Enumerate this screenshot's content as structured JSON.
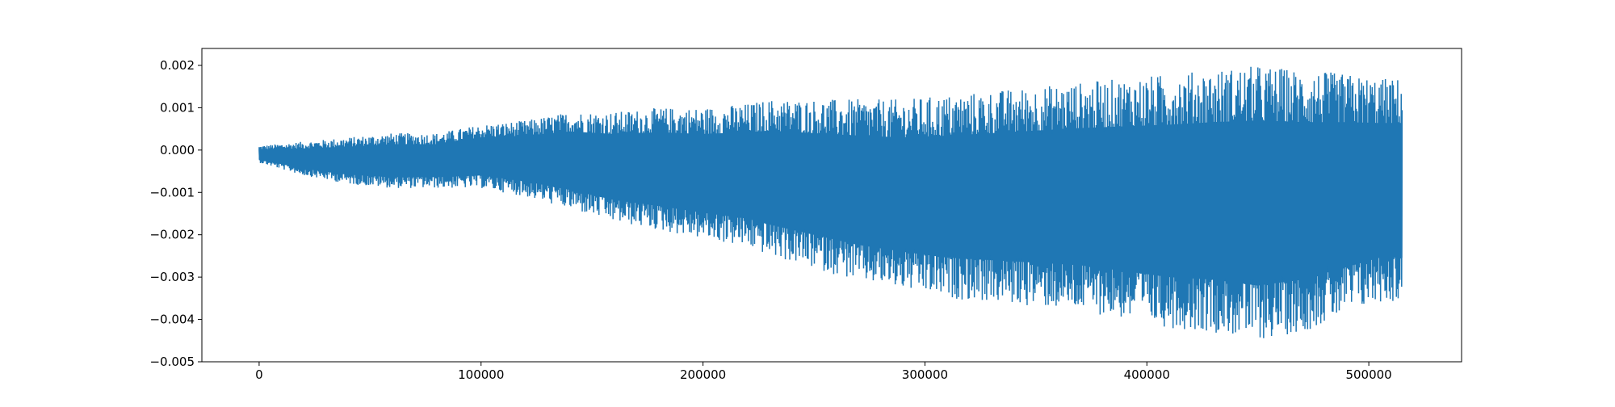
{
  "chart_data": {
    "type": "line",
    "title": "",
    "xlabel": "",
    "ylabel": "",
    "xlim": [
      -25800,
      541800
    ],
    "ylim": [
      -0.005,
      0.0024
    ],
    "xticks": [
      0,
      100000,
      200000,
      300000,
      400000,
      500000
    ],
    "xtick_labels": [
      "0",
      "100000",
      "200000",
      "300000",
      "400000",
      "500000"
    ],
    "yticks": [
      0.002,
      0.001,
      0.0,
      -0.001,
      -0.002,
      -0.003,
      -0.004,
      -0.005
    ],
    "ytick_labels": [
      "0.002",
      "0.001",
      "0.000",
      "−0.001",
      "−0.002",
      "−0.003",
      "−0.004",
      "−0.005"
    ],
    "grid": false,
    "legend": "none",
    "color": "#1f77b4",
    "series": [
      {
        "description_free_envelope": true,
        "x": [
          0,
          20000,
          40000,
          60000,
          80000,
          100000,
          120000,
          140000,
          160000,
          180000,
          200000,
          220000,
          230000,
          250000,
          270000,
          290000,
          310000,
          330000,
          350000,
          370000,
          390000,
          410000,
          430000,
          450000,
          470000,
          490000,
          505000,
          515000
        ],
        "upper": [
          0.0001,
          0.0002,
          0.0003,
          0.0004,
          0.0004,
          0.0006,
          0.0007,
          0.0009,
          0.0009,
          0.001,
          0.001,
          0.0011,
          0.0012,
          0.0012,
          0.0012,
          0.0012,
          0.0013,
          0.0014,
          0.0015,
          0.0016,
          0.0017,
          0.0018,
          0.0019,
          0.002,
          0.0019,
          0.0018,
          0.0017,
          0.0017
        ],
        "lower": [
          -0.0003,
          -0.0006,
          -0.0008,
          -0.0009,
          -0.0009,
          -0.0009,
          -0.0011,
          -0.0014,
          -0.0017,
          -0.0019,
          -0.0021,
          -0.0023,
          -0.0025,
          -0.0028,
          -0.0031,
          -0.0033,
          -0.0035,
          -0.0036,
          -0.0037,
          -0.0038,
          -0.004,
          -0.0042,
          -0.0043,
          -0.0045,
          -0.0043,
          -0.0039,
          -0.0036,
          -0.0036
        ]
      }
    ]
  }
}
